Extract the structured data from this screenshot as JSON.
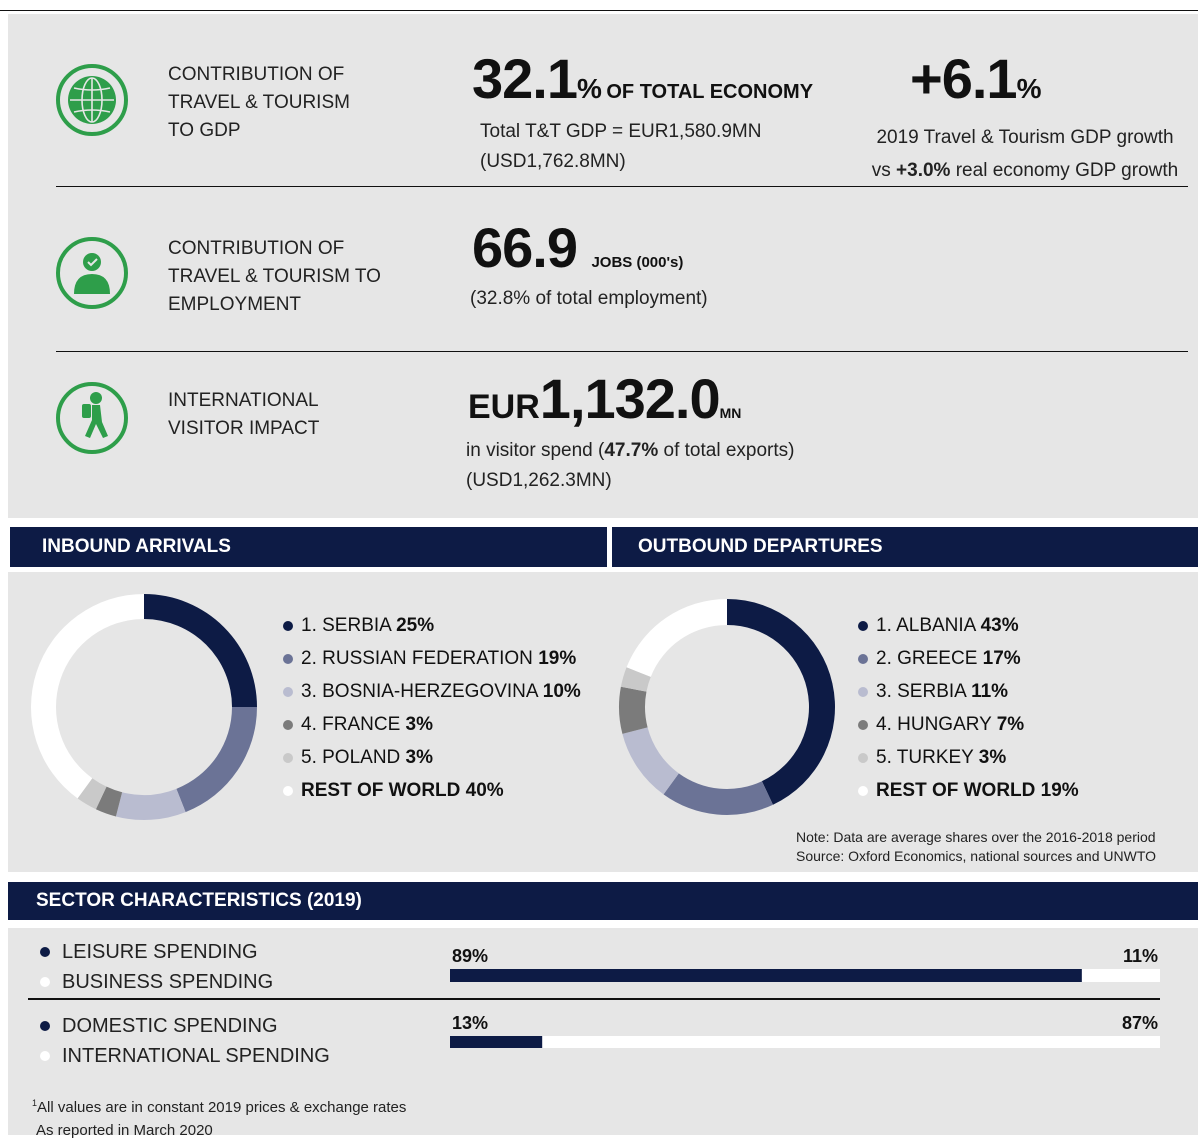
{
  "gdp": {
    "label": [
      "CONTRIBUTION OF",
      "TRAVEL & TOURISM",
      "TO GDP"
    ],
    "value": "32.1",
    "unit": "%",
    "suffix": "OF TOTAL ECONOMY",
    "detail": [
      "Total T&T GDP = EUR1,580.9MN",
      "(USD1,762.8MN)"
    ]
  },
  "growth": {
    "value": "+6.1",
    "unit": "%",
    "line1": "2019 Travel & Tourism GDP growth",
    "line2_prefix": "vs",
    "line2_value": "+3.0%",
    "line2_suffix": "real economy GDP growth"
  },
  "employment": {
    "label": [
      "CONTRIBUTION OF",
      "TRAVEL & TOURISM TO",
      "EMPLOYMENT"
    ],
    "value": "66.9",
    "suffix": "JOBS (000's)",
    "detail": "(32.8% of total employment)"
  },
  "visitor": {
    "label": [
      "INTERNATIONAL",
      "VISITOR IMPACT"
    ],
    "prefix": "EUR",
    "value": "1,132.0",
    "suffix": "MN",
    "detail_prefix": "in visitor spend (",
    "detail_value": "47.7%",
    "detail_suffix": "of total exports)",
    "detail2": "(USD1,262.3MN)"
  },
  "sections": [
    "INBOUND ARRIVALS",
    "OUTBOUND DEPARTURES",
    "SECTOR CHARACTERISTICS (2019)"
  ],
  "chart_data": [
    {
      "type": "pie",
      "categories": [
        "1. SERBIA",
        "2. RUSSIAN FEDERATION",
        "3. BOSNIA-HERZEGOVINA",
        "4. FRANCE",
        "5. POLAND",
        "REST OF WORLD"
      ],
      "values": [
        25,
        19,
        10,
        3,
        3,
        40
      ],
      "value_labels": [
        "25%",
        "19%",
        "10%",
        "3%",
        "3%",
        "40%"
      ],
      "colors": [
        "#0d1b45",
        "#6b7396",
        "#b9bcd0",
        "#7b7b7b",
        "#c9c9c9",
        "#ffffff"
      ]
    },
    {
      "type": "pie",
      "categories": [
        "1. ALBANIA",
        "2. GREECE",
        "3. SERBIA",
        "4. HUNGARY",
        "5. TURKEY",
        "REST OF WORLD"
      ],
      "values": [
        43,
        17,
        11,
        7,
        3,
        19
      ],
      "value_labels": [
        "43%",
        "17%",
        "11%",
        "7%",
        "3%",
        "19%"
      ],
      "colors": [
        "#0d1b45",
        "#6b7396",
        "#b9bcd0",
        "#7b7b7b",
        "#c9c9c9",
        "#ffffff"
      ]
    },
    {
      "type": "bar",
      "series": [
        {
          "name": "LEISURE SPENDING",
          "color": "#0d1b45",
          "values": [
            89
          ],
          "value_labels": [
            "89%"
          ]
        },
        {
          "name": "BUSINESS SPENDING",
          "color": "#ffffff",
          "values": [
            11
          ],
          "value_labels": [
            "11%"
          ]
        }
      ]
    },
    {
      "type": "bar",
      "series": [
        {
          "name": "DOMESTIC SPENDING",
          "color": "#0d1b45",
          "values": [
            13
          ],
          "value_labels": [
            "13%"
          ]
        },
        {
          "name": "INTERNATIONAL SPENDING",
          "color": "#ffffff",
          "values": [
            87
          ],
          "value_labels": [
            "87%"
          ]
        }
      ]
    }
  ],
  "note": [
    "Note: Data are average shares over the 2016-2018 period",
    "Source: Oxford Economics, national sources and UNWTO"
  ],
  "footnote": {
    "marker": "1",
    "lines": [
      "All values are in constant 2019 prices & exchange rates",
      "As reported in March 2020"
    ]
  }
}
